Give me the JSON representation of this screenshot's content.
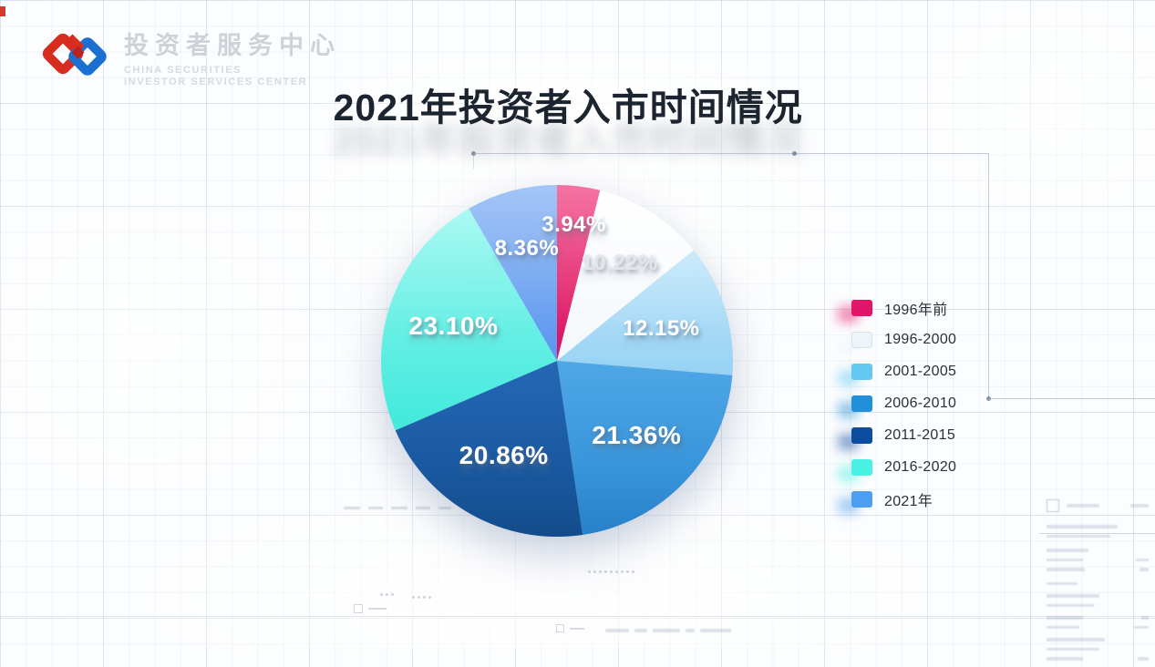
{
  "brand": {
    "logo_title": "投资者服务中心",
    "logo_subtitle_line1": "CHINA SECURITIES",
    "logo_subtitle_line2": "INVESTOR SERVICES CENTER"
  },
  "title": "2021年投资者入市时间情况",
  "chart_data": {
    "type": "pie",
    "title": "2021年投资者入市时间情况",
    "legend_position": "right",
    "rotation": "starts at 12 o'clock, clockwise, in legend order",
    "series": [
      {
        "label": "1996年前",
        "value": 3.94,
        "display": "3.94%",
        "color": "#E3156B",
        "gradient": [
          "#F14583",
          "#DA1260"
        ]
      },
      {
        "label": "1996-2000",
        "value": 10.22,
        "display": "10.22%",
        "color": "#EDF5FA",
        "gradient": [
          "#FFFFFF",
          "#F3F8FC"
        ],
        "label_color": "#E3E7EC"
      },
      {
        "label": "2001-2005",
        "value": 12.15,
        "display": "12.15%",
        "color": "#63C8F2",
        "gradient": [
          "#C3E7FA",
          "#96D2F4"
        ]
      },
      {
        "label": "2006-2010",
        "value": 21.36,
        "display": "21.36%",
        "color": "#2190D8",
        "gradient": [
          "#4FA7E5",
          "#2A89D4"
        ]
      },
      {
        "label": "2011-2015",
        "value": 20.86,
        "display": "20.86%",
        "color": "#0C4DA0",
        "gradient": [
          "#2468B5",
          "#134F92"
        ]
      },
      {
        "label": "2016-2020",
        "value": 23.1,
        "display": "23.10%",
        "color": "#4AF0E1",
        "gradient": [
          "#93F7EF",
          "#41E9DC"
        ]
      },
      {
        "label": "2021年",
        "value": 8.36,
        "display": "8.36%",
        "color": "#4C9FF0",
        "gradient": [
          "#85B2F4",
          "#5C97EF"
        ]
      }
    ]
  }
}
